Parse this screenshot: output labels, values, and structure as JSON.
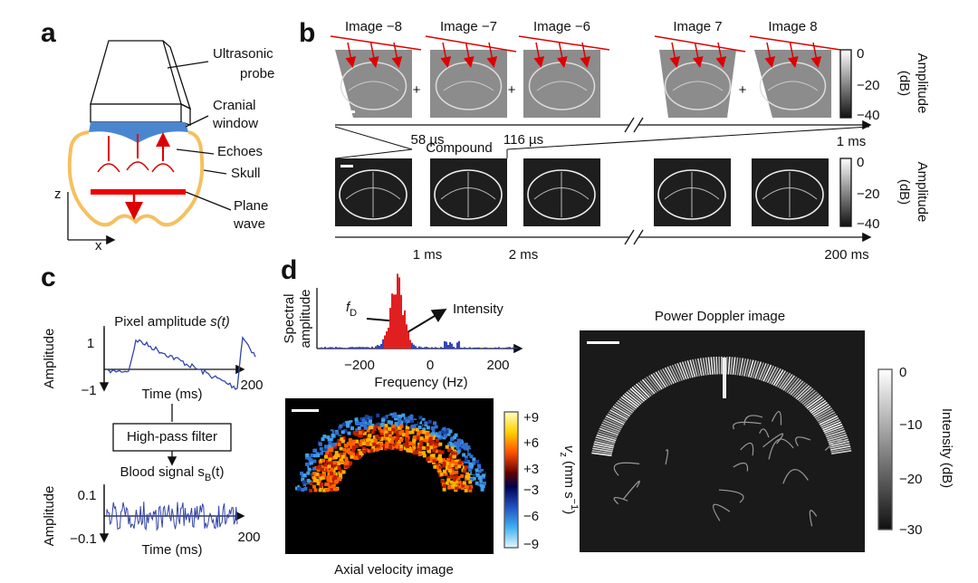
{
  "panels": {
    "a": {
      "label": "a",
      "probe": [
        "Ultrasonic",
        "probe"
      ],
      "window": [
        "Cranial",
        "window"
      ],
      "echoes": "Echoes",
      "skull": "Skull",
      "wave": [
        "Plane",
        "wave"
      ],
      "axis_z": "z",
      "axis_x": "x"
    },
    "b": {
      "label": "b",
      "images": [
        "Image −8",
        "Image −7",
        "Image −6",
        "Image 7",
        "Image 8"
      ],
      "plus": "+",
      "times_top": [
        "58 µs",
        "116 µs",
        "1 ms"
      ],
      "compound": "Compound",
      "times_bottom": [
        "1 ms",
        "2 ms",
        "200 ms"
      ],
      "colorbar_top": {
        "ticks": [
          "0",
          "−20",
          "−40"
        ],
        "label": [
          "Amplitude",
          "(dB)"
        ]
      },
      "colorbar_bottom": {
        "ticks": [
          "0",
          "−20",
          "−40"
        ],
        "label": [
          "Amplitude",
          "(dB)"
        ]
      }
    },
    "c": {
      "label": "c",
      "pixel": {
        "title": {
          "prefix": "Pixel amplitude ",
          "var": "s(t)"
        },
        "ylabel": "Amplitude",
        "yticks": [
          "1",
          "−1"
        ],
        "xlabel": "Time (ms)",
        "xmax": "200"
      },
      "filter": "High-pass filter",
      "blood": {
        "title": {
          "prefix": "Blood signal s",
          "sub": "B",
          "suffix": "(t)"
        },
        "ylabel": "Amplitude",
        "yticks": [
          "0.1",
          "−0.1"
        ],
        "xlabel": "Time (ms)",
        "xmax": "200"
      }
    },
    "d": {
      "label": "d",
      "spectrum": {
        "ylabel": [
          "Spectral",
          "amplitude"
        ],
        "fd": {
          "base": "f",
          "sub": "D"
        },
        "intensity": "Intensity",
        "xticks": [
          "−200",
          "0",
          "200"
        ],
        "xlabel": "Frequency (Hz)"
      },
      "velocity": {
        "caption": "Axial velocity image",
        "ticks": [
          "+9",
          "+6",
          "+3",
          "−3",
          "−6",
          "−9"
        ],
        "label": {
          "base": "v",
          "sub": "z",
          "unit": " (mm s",
          "sup": "−1",
          "close": ")"
        }
      },
      "doppler": {
        "title": "Power Doppler image",
        "ticks": [
          "0",
          "−10",
          "−20",
          "−30"
        ],
        "label": "Intensity (dB)"
      }
    }
  }
}
